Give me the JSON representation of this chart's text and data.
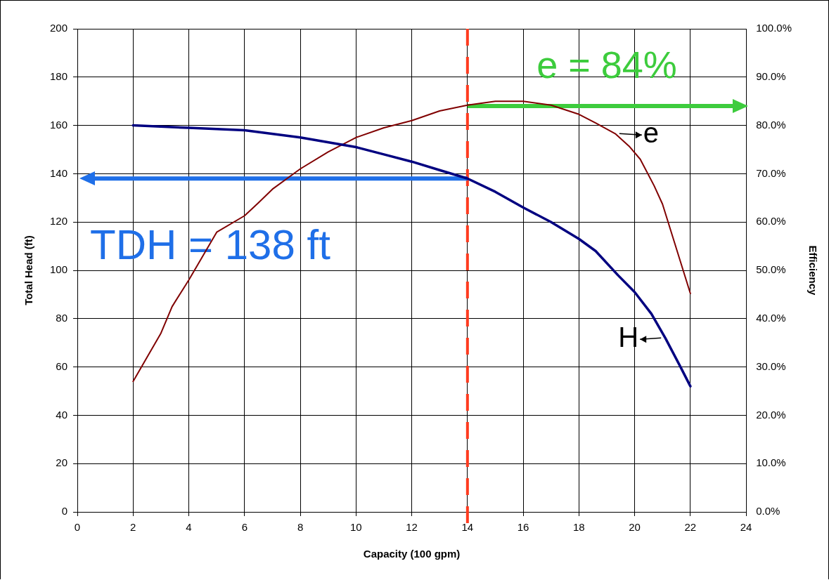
{
  "chart_data": {
    "type": "line",
    "xlabel": "Capacity (100 gpm)",
    "ylabel": "Total Head (ft)",
    "y2label": "Efficiency",
    "xlim": [
      0,
      24
    ],
    "xticks": [
      0,
      2,
      4,
      6,
      8,
      10,
      12,
      14,
      16,
      18,
      20,
      22,
      24
    ],
    "ylim": [
      0,
      200
    ],
    "yticks": [
      0,
      20,
      40,
      60,
      80,
      100,
      120,
      140,
      160,
      180,
      200
    ],
    "y2lim": [
      0,
      100
    ],
    "y2ticks": [
      {
        "value": 0,
        "label": "0.0%"
      },
      {
        "value": 10,
        "label": "10.0%"
      },
      {
        "value": 20,
        "label": "20.0%"
      },
      {
        "value": 30,
        "label": "30.0%"
      },
      {
        "value": 40,
        "label": "40.0%"
      },
      {
        "value": 50,
        "label": "50.0%"
      },
      {
        "value": 60,
        "label": "60.0%"
      },
      {
        "value": 70,
        "label": "70.0%"
      },
      {
        "value": 80,
        "label": "80.0%"
      },
      {
        "value": 90,
        "label": "90.0%"
      },
      {
        "value": 100,
        "label": "100.0%"
      }
    ],
    "grid": true,
    "legend": false,
    "marker": "none",
    "line_style": "solid",
    "series": [
      {
        "name": "H",
        "color": "#000080",
        "x": [
          2,
          4,
          6,
          8,
          10,
          11,
          12,
          13,
          14,
          15,
          16,
          17,
          18,
          18.6,
          19.4,
          20,
          20.6,
          21.1,
          21.6,
          22
        ],
        "values": [
          160,
          159,
          158,
          155,
          151,
          148,
          145,
          141.5,
          138,
          132.5,
          126,
          120,
          113,
          108,
          98,
          91,
          82,
          72,
          61,
          52
        ]
      },
      {
        "name": "e",
        "color": "#800000",
        "axis": "y2",
        "x": [
          2,
          3,
          3.4,
          4,
          5,
          6,
          6.5,
          7,
          8,
          9,
          10,
          11,
          12,
          13,
          14,
          15,
          16,
          17,
          18,
          18.6,
          19.3,
          19.8,
          20.2,
          20.7,
          21,
          22
        ],
        "values": [
          27,
          37,
          42.5,
          48,
          57.9,
          61.3,
          64,
          66.8,
          71,
          74.5,
          77.5,
          79.5,
          81,
          83,
          84.2,
          85,
          85,
          84.2,
          82.3,
          80.5,
          78.3,
          75.7,
          73,
          67.5,
          63.7,
          45.2
        ]
      }
    ],
    "ref_lines": [
      {
        "axis": "x",
        "value": 14,
        "color": "#ff3b1f",
        "line_style": "dashed"
      },
      {
        "axis": "y",
        "value": 138,
        "label": "TDH = 138 ft",
        "color": "#1f6fe8"
      },
      {
        "axis": "y2",
        "value": 84,
        "label": "e = 84%",
        "color": "#3dcc3d"
      }
    ]
  }
}
